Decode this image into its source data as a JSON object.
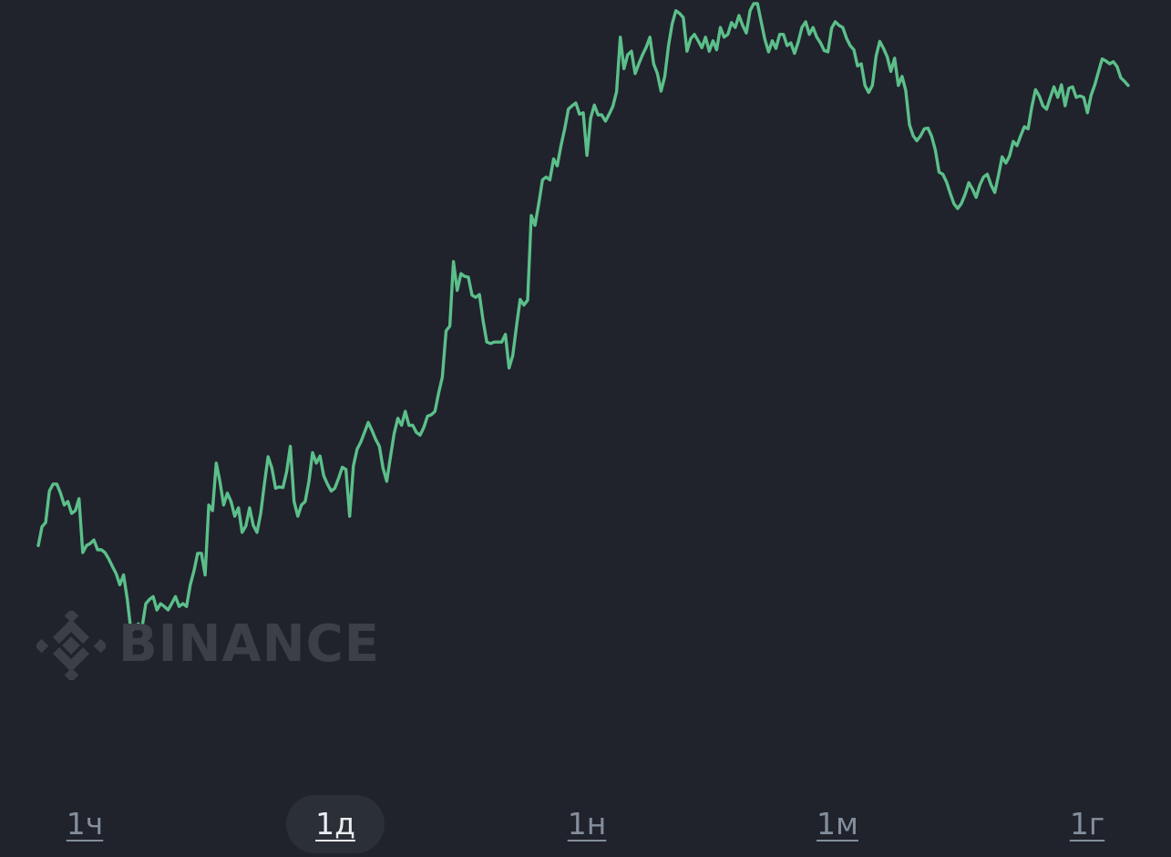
{
  "watermark": {
    "brand": "BINANCE",
    "logo_icon": "binance-logo-icon"
  },
  "timeframes": [
    {
      "label": "1ч",
      "active": false
    },
    {
      "label": "1д",
      "active": true
    },
    {
      "label": "1н",
      "active": false
    },
    {
      "label": "1м",
      "active": false
    },
    {
      "label": "1г",
      "active": false
    }
  ],
  "colors": {
    "background": "#20232c",
    "line": "#5cbf8a",
    "inactive_tab": "#848e9c",
    "active_tab_bg": "#2b2f37",
    "active_tab_text": "#eaecef"
  },
  "chart_data": {
    "type": "line",
    "title": "",
    "xlabel": "",
    "ylabel": "",
    "grid": false,
    "legend": "none",
    "ylim": [
      0,
      100
    ],
    "series": [
      {
        "values": [
          22.5,
          25.2,
          25.8,
          30.3,
          31.3,
          31.3,
          30.0,
          28.3,
          28.8,
          27.1,
          27.5,
          29.2,
          21.5,
          22.5,
          22.8,
          23.3,
          21.9,
          21.9,
          21.5,
          20.6,
          19.5,
          18.5,
          16.9,
          18.3,
          14.9,
          10.3,
          10.8,
          11.3,
          10.8,
          14.2,
          14.8,
          15.2,
          13.3,
          14.2,
          13.8,
          13.3,
          14.2,
          15.2,
          13.8,
          14.2,
          13.8,
          16.9,
          18.9,
          21.4,
          21.4,
          18.3,
          28.3,
          27.5,
          34.3,
          31.7,
          28.3,
          30.0,
          28.8,
          26.7,
          27.9,
          24.4,
          25.3,
          27.9,
          25.4,
          24.4,
          27.1,
          31.3,
          35.2,
          33.6,
          30.7,
          30.9,
          30.8,
          33.1,
          36.7,
          28.8,
          26.7,
          28.3,
          28.8,
          31.7,
          35.8,
          34.3,
          35.3,
          32.5,
          31.3,
          30.3,
          30.7,
          32.1,
          33.7,
          33.4,
          26.7,
          33.9,
          36.3,
          37.3,
          38.7,
          40.1,
          39.0,
          37.7,
          36.7,
          33.6,
          31.7,
          35.2,
          38.5,
          40.7,
          39.7,
          41.7,
          39.7,
          39.7,
          38.7,
          38.3,
          39.4,
          41.0,
          41.2,
          41.7,
          44.3,
          46.6,
          53.2,
          53.9,
          63.1,
          59.0,
          61.4,
          61.0,
          60.9,
          58.3,
          58.0,
          58.4,
          54.6,
          51.6,
          51.4,
          51.6,
          51.6,
          51.6,
          52.7,
          47.9,
          49.7,
          53.9,
          57.7,
          56.9,
          57.6,
          69.7,
          68.3,
          71.4,
          74.8,
          75.2,
          74.8,
          77.8,
          76.8,
          79.7,
          82.1,
          84.9,
          85.4,
          85.8,
          84.2,
          84.4,
          78.3,
          83.6,
          85.5,
          84.1,
          84.1,
          83.2,
          84.2,
          85.3,
          87.4,
          95.2,
          90.7,
          92.7,
          93.2,
          90.0,
          91.4,
          92.7,
          93.8,
          95.2,
          91.4,
          90.0,
          87.5,
          89.6,
          94.0,
          97.1,
          99.0,
          98.6,
          98.0,
          93.2,
          95.0,
          95.6,
          94.7,
          93.7,
          95.2,
          93.2,
          94.7,
          93.4,
          96.6,
          95.2,
          95.6,
          97.3,
          96.6,
          98.3,
          96.9,
          95.8,
          99.0,
          100.0,
          100.0,
          97.4,
          94.9,
          93.1,
          94.7,
          93.6,
          95.6,
          95.6,
          94.0,
          94.4,
          92.9,
          94.5,
          96.6,
          97.4,
          95.6,
          96.6,
          95.2,
          94.4,
          93.3,
          93.1,
          96.5,
          97.4,
          96.9,
          96.6,
          95.1,
          94.0,
          93.4,
          91.1,
          91.4,
          88.3,
          87.3,
          88.3,
          92.5,
          94.6,
          93.6,
          92.4,
          90.3,
          92.2,
          88.3,
          89.6,
          87.6,
          82.7,
          81.1,
          80.4,
          81.1,
          82.1,
          82.2,
          81.0,
          79.0,
          75.9,
          75.6,
          74.5,
          72.9,
          71.4,
          70.7,
          71.4,
          72.7,
          74.4,
          73.5,
          72.3,
          74.1,
          75.2,
          75.6,
          74.1,
          73.0,
          75.4,
          78.1,
          77.2,
          78.2,
          80.3,
          79.7,
          81.1,
          82.4,
          82.1,
          85.2,
          87.7,
          86.8,
          85.4,
          84.9,
          86.6,
          88.1,
          86.6,
          88.4,
          85.4,
          87.9,
          88.1,
          86.6,
          86.8,
          86.6,
          84.4,
          86.9,
          88.4,
          90.3,
          92.1,
          91.8,
          91.4,
          91.7,
          91.0,
          89.4,
          88.9,
          88.3
        ]
      }
    ]
  }
}
